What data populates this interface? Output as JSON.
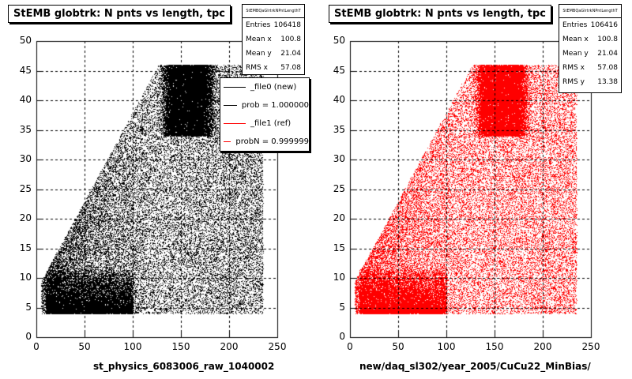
{
  "chart_data": [
    {
      "type": "scatter",
      "title": "StEMB globtrk: N pnts vs length, tpc",
      "xlabel": "st_physics_6083006_raw_1040002",
      "ylabel": "",
      "xlim": [
        0,
        250
      ],
      "ylim": [
        0,
        50
      ],
      "x_ticks": [
        0,
        50,
        100,
        150,
        200,
        250
      ],
      "y_ticks": [
        0,
        5,
        10,
        15,
        20,
        25,
        30,
        35,
        40,
        45,
        50
      ],
      "grid": true,
      "marker_color": "#000000",
      "stats": {
        "name": "StEMBQaGlrtrkNPntLengthT",
        "entries": [
          {
            "label": "Entries",
            "value": "106418"
          },
          {
            "label": "Mean x",
            "value": "100.8"
          },
          {
            "label": "Mean y",
            "value": "21.04"
          },
          {
            "label": "RMS x",
            "value": "57.08"
          }
        ]
      },
      "legend": [
        {
          "label": "_file0 (new)",
          "color": "#000000"
        },
        {
          "label": "prob = 1.000000",
          "color": "#000000"
        },
        {
          "label": "_file1 (ref)",
          "color": "#ff0000"
        },
        {
          "label": "probN = 0.999999",
          "color": "#ff0000"
        }
      ]
    },
    {
      "type": "scatter",
      "title": "StEMB globtrk: N pnts vs length, tpc",
      "xlabel": "new/daq_sl302/year_2005/CuCu22_MinBias/",
      "ylabel": "",
      "xlim": [
        0,
        250
      ],
      "ylim": [
        0,
        50
      ],
      "x_ticks": [
        0,
        50,
        100,
        150,
        200,
        250
      ],
      "y_ticks": [
        0,
        5,
        10,
        15,
        20,
        25,
        30,
        35,
        40,
        45,
        50
      ],
      "grid": true,
      "marker_color": "#ff0000",
      "stats": {
        "name": "StEMBQaGlrtrkNPntLengthT",
        "entries": [
          {
            "label": "Entries",
            "value": "106416"
          },
          {
            "label": "Mean x",
            "value": "100.8"
          },
          {
            "label": "Mean y",
            "value": "21.04"
          },
          {
            "label": "RMS x",
            "value": "57.08"
          },
          {
            "label": "RMS y",
            "value": "13.38"
          }
        ]
      }
    }
  ]
}
